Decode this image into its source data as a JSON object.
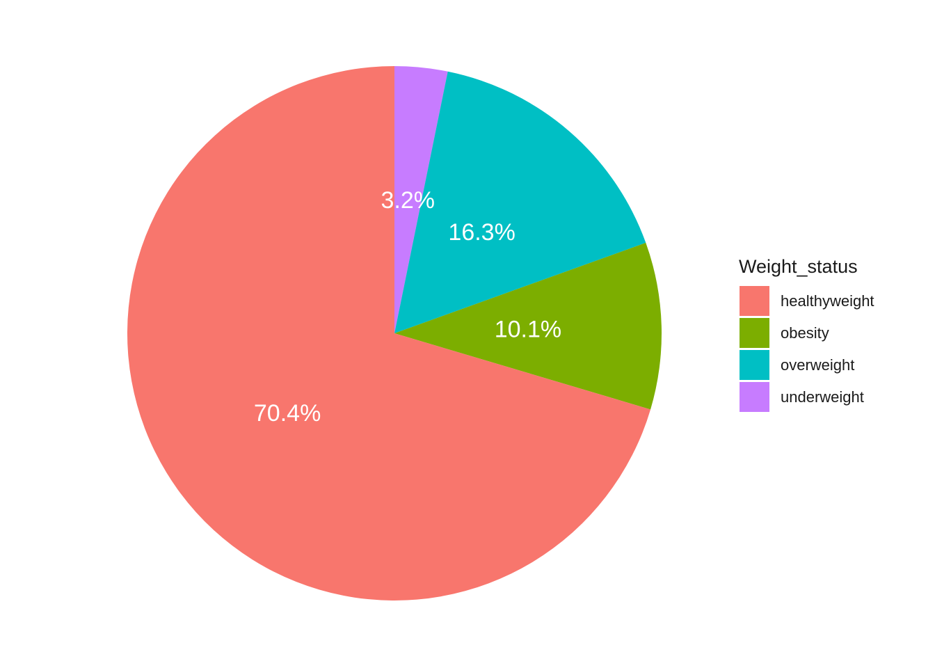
{
  "chart_data": {
    "type": "pie",
    "legend": {
      "title": "Weight_status",
      "position": "right"
    },
    "slices": [
      {
        "category": "healthyweight",
        "percent": 70.4,
        "label": "70.4%",
        "color": "#F8766D"
      },
      {
        "category": "obesity",
        "percent": 10.1,
        "label": "10.1%",
        "color": "#7CAE00"
      },
      {
        "category": "overweight",
        "percent": 16.3,
        "label": "16.3%",
        "color": "#00BFC4"
      },
      {
        "category": "underweight",
        "percent": 3.2,
        "label": "3.2%",
        "color": "#C77CFF"
      }
    ]
  }
}
